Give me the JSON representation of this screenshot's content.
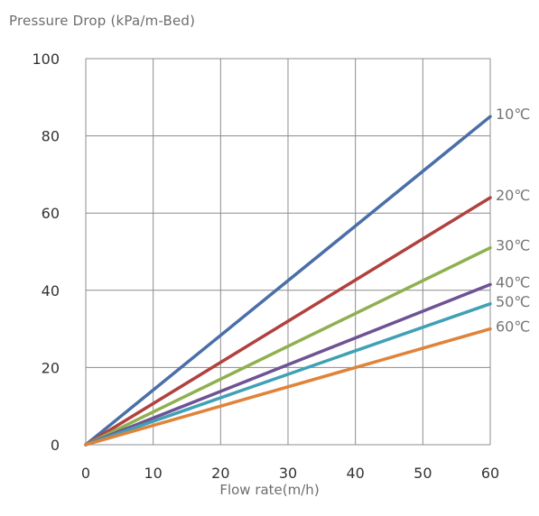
{
  "chart_data": {
    "type": "line",
    "ylabel": "Pressure Drop (kPa/m-Bed)",
    "xlabel": "Flow rate(m/h)",
    "xlim": [
      0,
      60
    ],
    "ylim": [
      0,
      100
    ],
    "x_ticks": [
      0,
      10,
      20,
      30,
      40,
      50,
      60
    ],
    "y_ticks": [
      0,
      20,
      40,
      60,
      80,
      100
    ],
    "grid": true,
    "legend": "none",
    "series": [
      {
        "name": "10℃",
        "x": [
          0,
          60
        ],
        "values": [
          0,
          85
        ],
        "color": "#4a6fa8"
      },
      {
        "name": "20℃",
        "x": [
          0,
          60
        ],
        "values": [
          0,
          64
        ],
        "color": "#b0413e"
      },
      {
        "name": "30℃",
        "x": [
          0,
          60
        ],
        "values": [
          0,
          51
        ],
        "color": "#8fb04f"
      },
      {
        "name": "40℃",
        "x": [
          0,
          60
        ],
        "values": [
          0,
          41.5
        ],
        "color": "#6e5394"
      },
      {
        "name": "50℃",
        "x": [
          0,
          60
        ],
        "values": [
          0,
          36.5
        ],
        "color": "#3fa0b6"
      },
      {
        "name": "60℃",
        "x": [
          0,
          60
        ],
        "values": [
          0,
          30
        ],
        "color": "#e0833a"
      }
    ]
  }
}
